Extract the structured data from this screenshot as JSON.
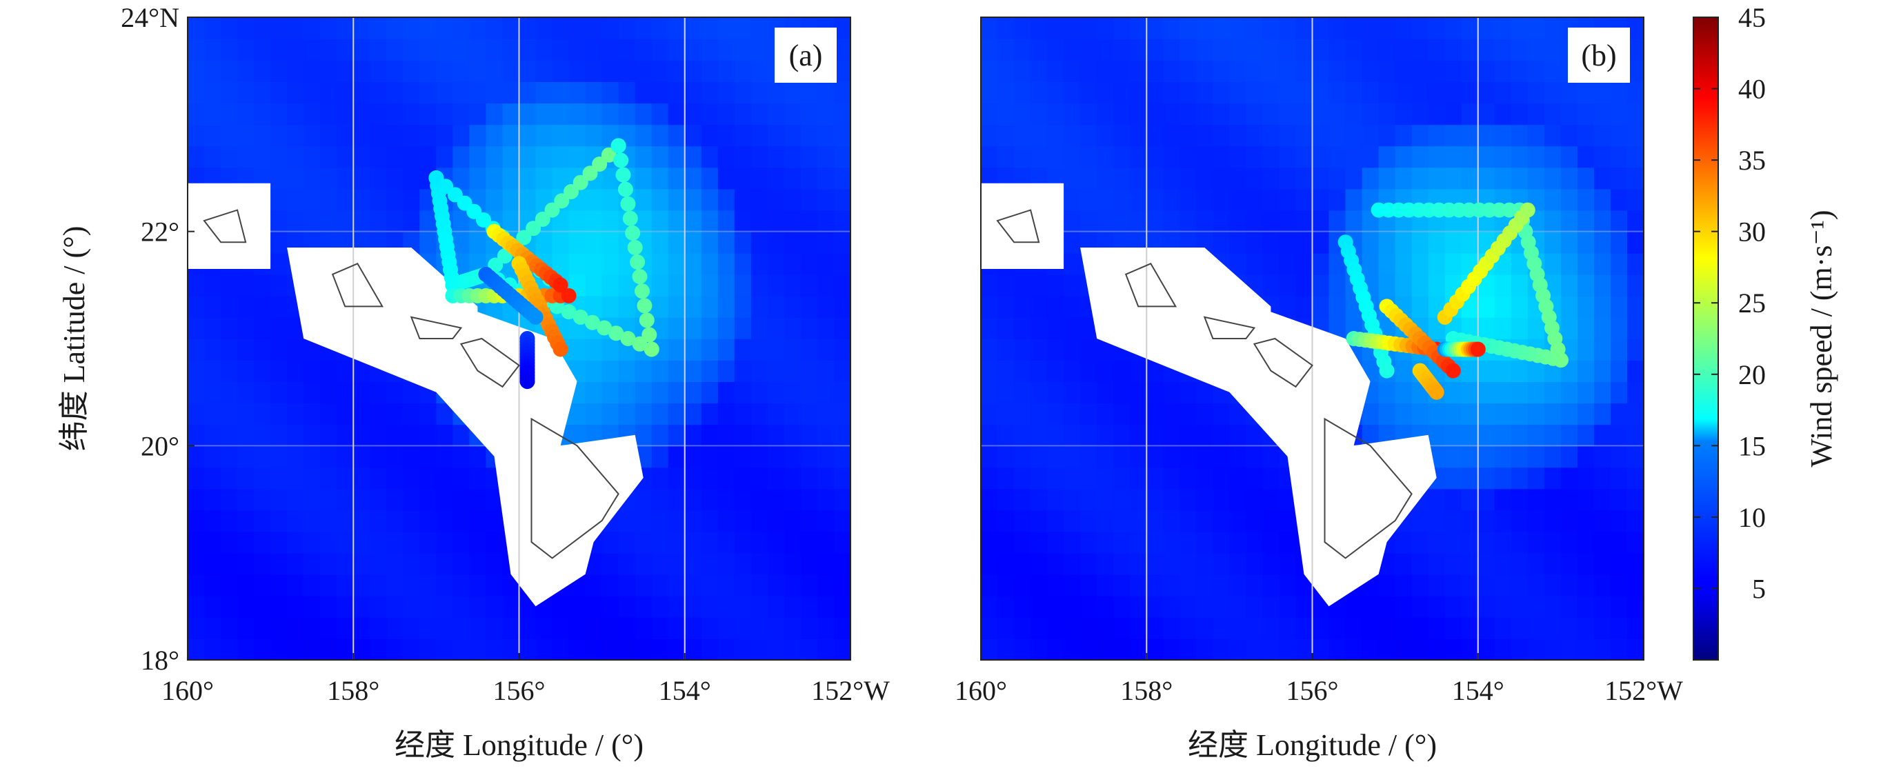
{
  "chart_data": {
    "type": "heatmap",
    "colorbar": {
      "label": "Wind speed / (m·s⁻¹)",
      "range": [
        0,
        45
      ],
      "ticks": [
        5,
        10,
        15,
        20,
        25,
        30,
        35,
        40,
        45
      ],
      "colormap": "jet",
      "placement": "right"
    },
    "panels": [
      {
        "label": "(a)",
        "xlabel": "经度 Longitude / (°)",
        "ylabel": "纬度 Latitude / (°)",
        "xlim": [
          -160,
          -152
        ],
        "ylim": [
          18,
          24
        ],
        "xticks": [
          {
            "value": -160,
            "label": "160°"
          },
          {
            "value": -158,
            "label": "158°"
          },
          {
            "value": -156,
            "label": "156°"
          },
          {
            "value": -154,
            "label": "154°"
          },
          {
            "value": -152,
            "label": "152°W"
          }
        ],
        "yticks": [
          {
            "value": 18,
            "label": "18°"
          },
          {
            "value": 20,
            "label": "20°"
          },
          {
            "value": 22,
            "label": "22°"
          },
          {
            "value": 24,
            "label": "24°N"
          }
        ],
        "grid": true,
        "background_wind": 8,
        "storm": {
          "center": [
            -155.3,
            21.5
          ],
          "radius_deg": 2.1,
          "peak_wind": 17
        },
        "tracks": [
          {
            "lon": [
              -157.0,
              -156.8,
              -156.4
            ],
            "lat": [
              22.5,
              21.5,
              21.6
            ],
            "wind": [
              16,
              17,
              18
            ]
          },
          {
            "lon": [
              -157.0,
              -155.4
            ],
            "lat": [
              22.5,
              21.4
            ],
            "wind": [
              16,
              19
            ]
          },
          {
            "lon": [
              -156.4,
              -154.8
            ],
            "lat": [
              21.6,
              22.8
            ],
            "wind": [
              18,
              22
            ]
          },
          {
            "lon": [
              -154.8,
              -154.4
            ],
            "lat": [
              22.8,
              20.9
            ],
            "wind": [
              18,
              22
            ]
          },
          {
            "lon": [
              -154.4,
              -156.4
            ],
            "lat": [
              20.9,
              21.6
            ],
            "wind": [
              22,
              17
            ]
          },
          {
            "lon": [
              -156.8,
              -155.4
            ],
            "lat": [
              21.4,
              21.4
            ],
            "wind": [
              18,
              38
            ]
          },
          {
            "lon": [
              -156.3,
              -155.5
            ],
            "lat": [
              22.0,
              21.5
            ],
            "wind": [
              28,
              38
            ]
          },
          {
            "lon": [
              -156.0,
              -155.5
            ],
            "lat": [
              21.7,
              20.9
            ],
            "wind": [
              30,
              35
            ]
          },
          {
            "lon": [
              -155.9,
              -155.9
            ],
            "lat": [
              21.0,
              20.6
            ],
            "wind": [
              8,
              5
            ]
          },
          {
            "lon": [
              -156.4,
              -155.8
            ],
            "lat": [
              21.6,
              21.2
            ],
            "wind": [
              10,
              12
            ]
          }
        ]
      },
      {
        "label": "(b)",
        "xlabel": "经度 Longitude / (°)",
        "ylabel": "",
        "xlim": [
          -160,
          -152
        ],
        "ylim": [
          18,
          24
        ],
        "xticks": [
          {
            "value": -160,
            "label": "160°"
          },
          {
            "value": -158,
            "label": "158°"
          },
          {
            "value": -156,
            "label": "156°"
          },
          {
            "value": -154,
            "label": "154°"
          },
          {
            "value": -152,
            "label": "152°W"
          }
        ],
        "yticks": [],
        "grid": true,
        "background_wind": 8,
        "storm": {
          "center": [
            -154.0,
            21.3
          ],
          "radius_deg": 2.0,
          "peak_wind": 17
        },
        "tracks": [
          {
            "lon": [
              -155.2,
              -153.5
            ],
            "lat": [
              22.2,
              22.2
            ],
            "wind": [
              17,
              20
            ]
          },
          {
            "lon": [
              -153.5,
              -153.0
            ],
            "lat": [
              22.2,
              20.8
            ],
            "wind": [
              20,
              22
            ]
          },
          {
            "lon": [
              -153.0,
              -154.3
            ],
            "lat": [
              20.8,
              21.0
            ],
            "wind": [
              22,
              18
            ]
          },
          {
            "lon": [
              -155.6,
              -155.1
            ],
            "lat": [
              21.9,
              20.7
            ],
            "wind": [
              16,
              18
            ]
          },
          {
            "lon": [
              -155.5,
              -154.5
            ],
            "lat": [
              21.0,
              20.9
            ],
            "wind": [
              20,
              38
            ]
          },
          {
            "lon": [
              -155.1,
              -154.3
            ],
            "lat": [
              21.3,
              20.7
            ],
            "wind": [
              28,
              38
            ]
          },
          {
            "lon": [
              -154.4,
              -153.4
            ],
            "lat": [
              21.2,
              22.2
            ],
            "wind": [
              30,
              24
            ]
          },
          {
            "lon": [
              -154.7,
              -154.5
            ],
            "lat": [
              20.7,
              20.5
            ],
            "wind": [
              30,
              32
            ]
          },
          {
            "lon": [
              -154.4,
              -154.0
            ],
            "lat": [
              20.9,
              20.9
            ],
            "wind": [
              12,
              38
            ]
          }
        ]
      }
    ],
    "islands": [
      {
        "name": "Kauai",
        "lon": [
          -159.8,
          -159.4,
          -159.3,
          -159.6,
          -159.8
        ],
        "lat": [
          22.1,
          22.2,
          21.9,
          21.9,
          22.1
        ]
      },
      {
        "name": "Oahu",
        "lon": [
          -158.25,
          -157.95,
          -157.65,
          -158.1,
          -158.25
        ],
        "lat": [
          21.6,
          21.7,
          21.3,
          21.3,
          21.6
        ]
      },
      {
        "name": "Molokai",
        "lon": [
          -157.3,
          -156.7,
          -156.8,
          -157.2,
          -157.3
        ],
        "lat": [
          21.2,
          21.1,
          21.0,
          21.0,
          21.2
        ]
      },
      {
        "name": "Maui",
        "lon": [
          -156.7,
          -156.45,
          -156.0,
          -156.2,
          -156.5,
          -156.7
        ],
        "lat": [
          20.95,
          21.0,
          20.75,
          20.55,
          20.7,
          20.95
        ]
      },
      {
        "name": "Hawaii",
        "lon": [
          -155.85,
          -155.3,
          -154.8,
          -155.0,
          -155.6,
          -155.85,
          -155.85
        ],
        "lat": [
          20.25,
          20.0,
          19.55,
          19.3,
          18.95,
          19.1,
          20.25
        ]
      }
    ],
    "land_mask": [
      {
        "lon": [
          -160.2,
          -159.0,
          -159.0,
          -160.2
        ],
        "lat": [
          22.45,
          22.45,
          21.65,
          21.65
        ]
      },
      {
        "lon": [
          -158.8,
          -157.3,
          -156.5,
          -156.5,
          -155.6,
          -155.3,
          -155.5,
          -154.6,
          -154.5,
          -155.1,
          -155.2,
          -155.8,
          -156.1,
          -156.3,
          -157.0,
          -158.6,
          -158.8
        ],
        "lat": [
          21.85,
          21.85,
          21.3,
          21.25,
          21.0,
          20.6,
          20.0,
          20.1,
          19.7,
          19.1,
          18.8,
          18.5,
          18.8,
          19.9,
          20.5,
          21.0,
          21.85
        ]
      }
    ]
  }
}
